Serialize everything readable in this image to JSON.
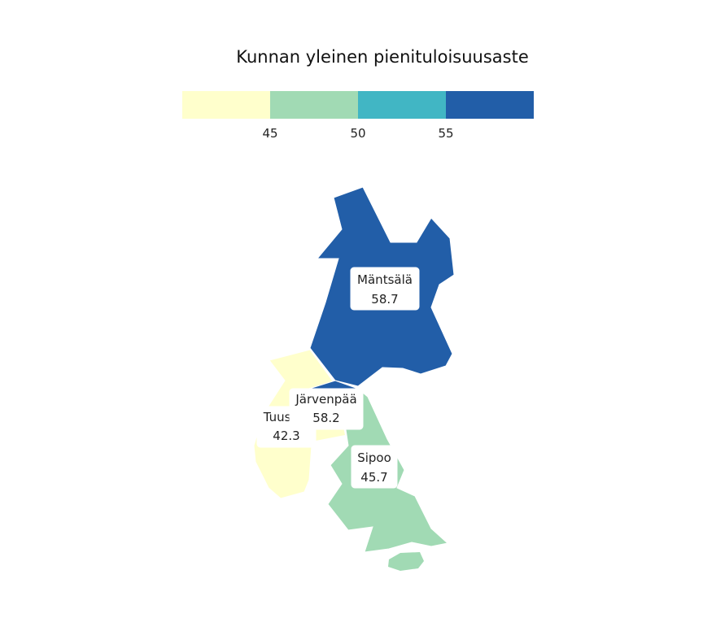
{
  "legend": {
    "title": "Kunnan yleinen pienituloisuusaste",
    "bins": [
      {
        "color": "#ffffcc"
      },
      {
        "color": "#a1dab4"
      },
      {
        "color": "#41b6c4"
      },
      {
        "color": "#225ea8"
      }
    ],
    "ticks": [
      "45",
      "50",
      "55"
    ]
  },
  "regions": [
    {
      "name": "Mäntsälä",
      "value": "58.7",
      "color": "#225ea8"
    },
    {
      "name": "Järvenpää",
      "value": "58.2",
      "color": "#225ea8"
    },
    {
      "name": "Tuusula",
      "value": "42.3",
      "color": "#ffffcc"
    },
    {
      "name": "Sipoo",
      "value": "45.7",
      "color": "#a1dab4"
    }
  ]
}
